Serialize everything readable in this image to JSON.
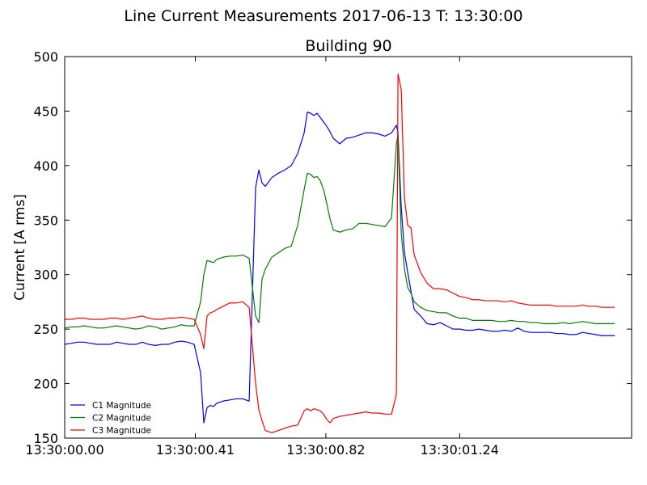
{
  "figure": {
    "suptitle": "Line Current Measurements 2017-06-13 T: 13:30:00"
  },
  "chart_data": {
    "type": "line",
    "title": "Building 90",
    "xlabel": "",
    "ylabel": "Current [A rms]",
    "x_tick_labels": [
      "13:30:00.00",
      "13:30:00.41",
      "13:30:00.82",
      "13:30:01.24"
    ],
    "x_tick_values": [
      0,
      0.41,
      0.82,
      1.24
    ],
    "xlim": [
      0,
      1.78
    ],
    "ylim": [
      150,
      500
    ],
    "y_ticks": [
      150,
      200,
      250,
      300,
      350,
      400,
      450,
      500
    ],
    "grid": false,
    "legend_position": "lower-left",
    "x": [
      0,
      0.0203,
      0.0406,
      0.061,
      0.0813,
      0.1016,
      0.1219,
      0.1422,
      0.1625,
      0.1829,
      0.2032,
      0.2235,
      0.2438,
      0.2641,
      0.2845,
      0.3048,
      0.3251,
      0.3454,
      0.3657,
      0.386,
      0.4064,
      0.4267,
      0.4368,
      0.447,
      0.4572,
      0.4673,
      0.4775,
      0.4978,
      0.5181,
      0.5384,
      0.5588,
      0.5791,
      0.5994,
      0.6096,
      0.6197,
      0.6299,
      0.6502,
      0.6706,
      0.6909,
      0.7112,
      0.7315,
      0.7518,
      0.762,
      0.7722,
      0.7823,
      0.7925,
      0.8026,
      0.8128,
      0.823,
      0.8331,
      0.8433,
      0.8636,
      0.8839,
      0.9042,
      0.9245,
      0.9449,
      0.9652,
      0.9855,
      1.0058,
      1.0261,
      1.0414,
      1.0465,
      1.0566,
      1.0668,
      1.077,
      1.0871,
      1.0973,
      1.1176,
      1.1379,
      1.1582,
      1.1786,
      1.1989,
      1.2192,
      1.2395,
      1.2598,
      1.2801,
      1.3005,
      1.3208,
      1.3411,
      1.3614,
      1.3817,
      1.4021,
      1.4224,
      1.4427,
      1.463,
      1.4833,
      1.5036,
      1.524,
      1.5443,
      1.5646,
      1.5849,
      1.6052,
      1.6256,
      1.6459,
      1.6662,
      1.6865,
      1.7068,
      1.7272
    ],
    "series": [
      {
        "name": "C1 Magnitude",
        "color": "#0000ff",
        "values": [
          236,
          237,
          238,
          238,
          237,
          236,
          236,
          236,
          238,
          237,
          236,
          236,
          238,
          236,
          235,
          236,
          236,
          238,
          239,
          238,
          236,
          210,
          164,
          178,
          180,
          179,
          182,
          184,
          185,
          186,
          186,
          184,
          380,
          396,
          384,
          381,
          389,
          393,
          396,
          400,
          411,
          430,
          449,
          448,
          446,
          448,
          444,
          440,
          436,
          431,
          425,
          420,
          425,
          426,
          428,
          430,
          430,
          429,
          427,
          430,
          437,
          430,
          362,
          320,
          302,
          285,
          268,
          262,
          255,
          254,
          256,
          253,
          250,
          250,
          249,
          249,
          250,
          249,
          248,
          248,
          249,
          248,
          251,
          248,
          247,
          247,
          247,
          247,
          246,
          246,
          245,
          245,
          247,
          246,
          245,
          244,
          244,
          244
        ]
      },
      {
        "name": "C2 Magnitude",
        "color": "#008000",
        "values": [
          251,
          252,
          252,
          253,
          252,
          251,
          251,
          252,
          253,
          252,
          251,
          250,
          251,
          253,
          252,
          250,
          251,
          252,
          254,
          253,
          253,
          275,
          300,
          313,
          312,
          311,
          314,
          316,
          317,
          317,
          318,
          315,
          262,
          256,
          296,
          305,
          316,
          320,
          324,
          326,
          345,
          378,
          393,
          392,
          389,
          390,
          386,
          378,
          365,
          351,
          341,
          339,
          341,
          342,
          347,
          347,
          346,
          345,
          344,
          352,
          420,
          428,
          338,
          305,
          288,
          283,
          275,
          270,
          267,
          266,
          265,
          265,
          262,
          260,
          260,
          258,
          258,
          258,
          258,
          257,
          257,
          258,
          257,
          257,
          256,
          256,
          255,
          255,
          255,
          256,
          255,
          256,
          257,
          256,
          255,
          255,
          255,
          255
        ]
      },
      {
        "name": "C3 Magnitude",
        "color": "#ff0000",
        "values": [
          259,
          259,
          260,
          260,
          259,
          259,
          259,
          260,
          260,
          259,
          260,
          261,
          262,
          260,
          259,
          259,
          260,
          260,
          261,
          260,
          259,
          245,
          232,
          262,
          265,
          266,
          268,
          271,
          274,
          274,
          275,
          270,
          200,
          176,
          166,
          157,
          155,
          157,
          159,
          161,
          162,
          175,
          177,
          175,
          177,
          176,
          175,
          172,
          167,
          164,
          168,
          170,
          171,
          172,
          173,
          174,
          173,
          173,
          172,
          172,
          190,
          484,
          470,
          370,
          345,
          343,
          318,
          302,
          292,
          287,
          287,
          286,
          283,
          280,
          279,
          277,
          277,
          276,
          276,
          276,
          275,
          276,
          274,
          273,
          272,
          272,
          272,
          272,
          271,
          271,
          271,
          271,
          272,
          271,
          271,
          270,
          270,
          270
        ]
      }
    ]
  }
}
